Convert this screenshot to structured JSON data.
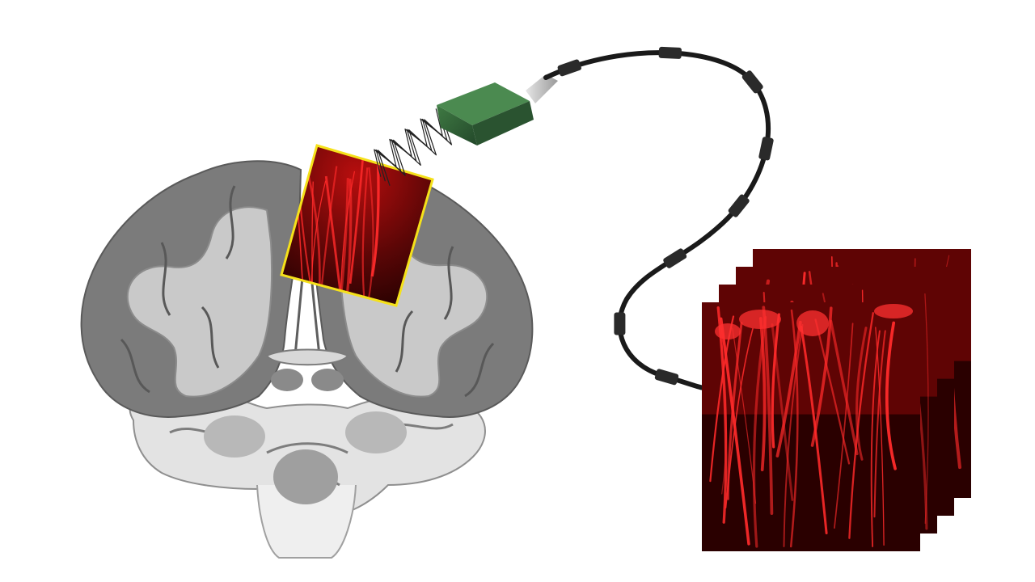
{
  "figure": {
    "background_color": "#ffffff",
    "brain_section": {
      "icon": "coronal-brain-section-icon",
      "cortex_color": "#7a7a7a",
      "white_matter_color": "#c7c7c7",
      "cerebellum_color": "#bdbdbd"
    },
    "imaging_window": {
      "border_color": "#f5e11a",
      "fill_color": "#7a0a0a"
    },
    "ultrasound_waves": {
      "icon": "ultrasound-wave-icon",
      "color": "#222222"
    },
    "probe": {
      "icon": "ultrasound-probe-icon",
      "body_color": "#2f5f33",
      "connector_color": "#bdbdbd"
    },
    "cable": {
      "color": "#1a1a1a",
      "clip_color": "#2a2a2a"
    },
    "image_stack": {
      "icon": "image-stack-icon",
      "frame_count": 4,
      "vessel_color": "#ff2a2a",
      "background_color": "#2a0000"
    }
  }
}
